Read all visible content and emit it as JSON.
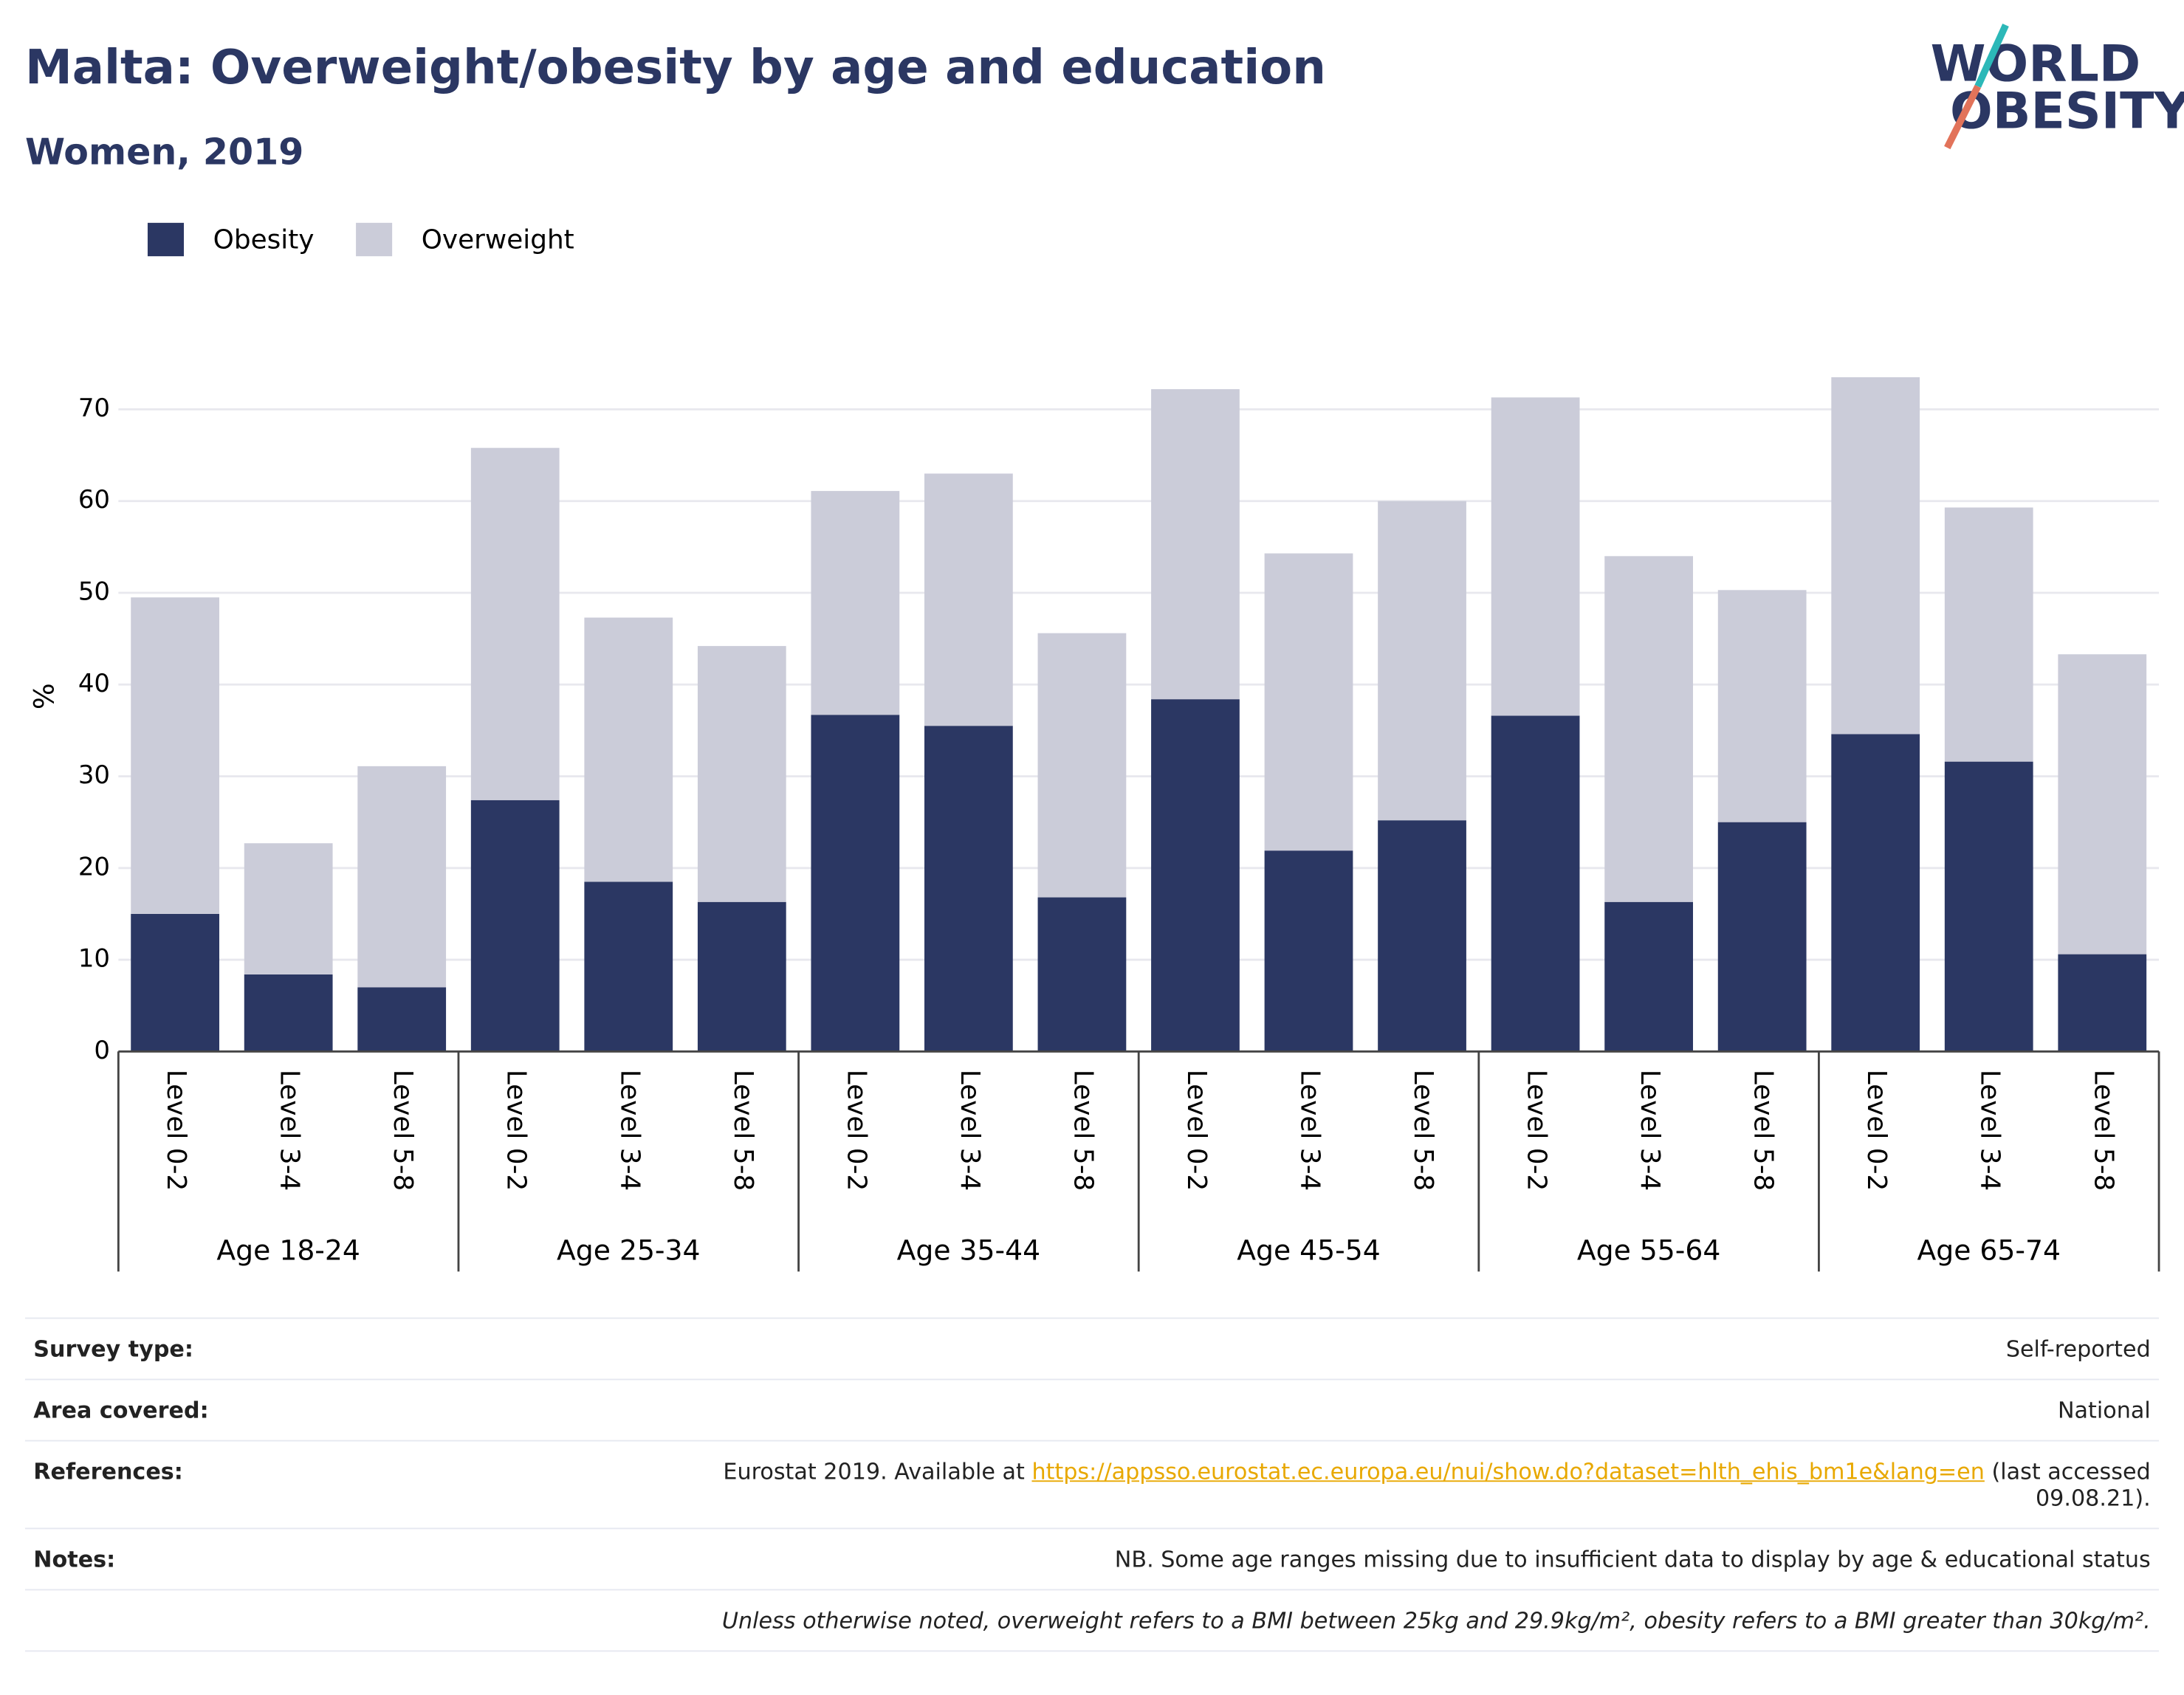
{
  "chart_data": {
    "type": "stacked-bar",
    "title": "Malta: Overweight/obesity by age and education",
    "subtitle": "Women, 2019",
    "y_label": "%",
    "groups": [
      {
        "name": "Age 18-24",
        "categories": [
          "Level 0-2",
          "Level 3-4",
          "Level 5-8"
        ]
      },
      {
        "name": "Age 25-34",
        "categories": [
          "Level 0-2",
          "Level 3-4",
          "Level 5-8"
        ]
      },
      {
        "name": "Age 35-44",
        "categories": [
          "Level 0-2",
          "Level 3-4",
          "Level 5-8"
        ]
      },
      {
        "name": "Age 45-54",
        "categories": [
          "Level 0-2",
          "Level 3-4",
          "Level 5-8"
        ]
      },
      {
        "name": "Age 55-64",
        "categories": [
          "Level 0-2",
          "Level 3-4",
          "Level 5-8"
        ]
      },
      {
        "name": "Age 65-74",
        "categories": [
          "Level 0-2",
          "Level 3-4",
          "Level 5-8"
        ]
      }
    ],
    "series": [
      {
        "name": "Obesity",
        "color": "#2b3763",
        "values": [
          15,
          8.4,
          7.0,
          27.4,
          18.5,
          16.3,
          36.7,
          35.5,
          16.8,
          38.4,
          21.9,
          25.2,
          36.6,
          16.3,
          25.0,
          34.6,
          31.6,
          10.6
        ]
      },
      {
        "name": "Overweight",
        "color": "#cbccd9",
        "values": [
          34.5,
          14.3,
          24.1,
          38.4,
          28.8,
          27.9,
          24.4,
          27.5,
          28.8,
          33.8,
          32.4,
          34.8,
          34.7,
          37.7,
          25.3,
          38.9,
          27.7,
          32.7
        ]
      }
    ],
    "ylim": [
      0,
      75
    ],
    "yticks": [
      0,
      10,
      20,
      30,
      40,
      50,
      60,
      70
    ],
    "grid": true,
    "legend": "top-left"
  },
  "logo": {
    "line1": "WORLD",
    "line2": "OBESITY"
  },
  "footer": {
    "rows": [
      {
        "label": "Survey type:",
        "value": "Self-reported"
      },
      {
        "label": "Area covered:",
        "value": "National"
      },
      {
        "label": "References:",
        "prefix": "Eurostat 2019. Available at ",
        "url": "https://appsso.eurostat.ec.europa.eu/nui/show.do?dataset=hlth_ehis_bm1e&lang=en",
        "suffix": " (last accessed 09.08.21)."
      },
      {
        "label": "Notes:",
        "value": "NB. Some age ranges missing due to insufficient data to display by age & educational status"
      }
    ],
    "definition": "Unless otherwise noted, overweight refers to a BMI between 25kg and 29.9kg/m², obesity refers to a BMI greater than 30kg/m²."
  }
}
